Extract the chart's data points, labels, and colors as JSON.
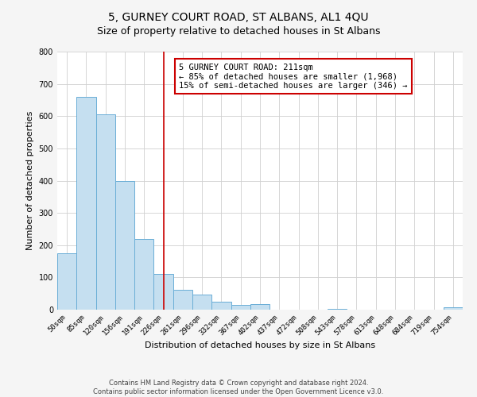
{
  "title": "5, GURNEY COURT ROAD, ST ALBANS, AL1 4QU",
  "subtitle": "Size of property relative to detached houses in St Albans",
  "xlabel": "Distribution of detached houses by size in St Albans",
  "ylabel": "Number of detached properties",
  "bar_labels": [
    "50sqm",
    "85sqm",
    "120sqm",
    "156sqm",
    "191sqm",
    "226sqm",
    "261sqm",
    "296sqm",
    "332sqm",
    "367sqm",
    "402sqm",
    "437sqm",
    "472sqm",
    "508sqm",
    "543sqm",
    "578sqm",
    "613sqm",
    "648sqm",
    "684sqm",
    "719sqm",
    "754sqm"
  ],
  "bar_values": [
    175,
    660,
    605,
    400,
    218,
    110,
    62,
    47,
    25,
    15,
    18,
    0,
    0,
    0,
    2,
    0,
    0,
    0,
    0,
    0,
    8
  ],
  "bar_color": "#c5dff0",
  "bar_edge_color": "#6aaed6",
  "vline_x": 5.0,
  "vline_color": "#cc0000",
  "annotation_text": "5 GURNEY COURT ROAD: 211sqm\n← 85% of detached houses are smaller (1,968)\n15% of semi-detached houses are larger (346) →",
  "annotation_box_edgecolor": "#cc0000",
  "ylim": [
    0,
    800
  ],
  "yticks": [
    0,
    100,
    200,
    300,
    400,
    500,
    600,
    700,
    800
  ],
  "footer1": "Contains HM Land Registry data © Crown copyright and database right 2024.",
  "footer2": "Contains public sector information licensed under the Open Government Licence v3.0.",
  "bg_color": "#f5f5f5",
  "plot_bg_color": "#ffffff",
  "grid_color": "#d0d0d0",
  "title_fontsize": 10,
  "subtitle_fontsize": 9,
  "axis_label_fontsize": 8,
  "tick_fontsize": 6.5,
  "annotation_fontsize": 7.5,
  "footer_fontsize": 6
}
